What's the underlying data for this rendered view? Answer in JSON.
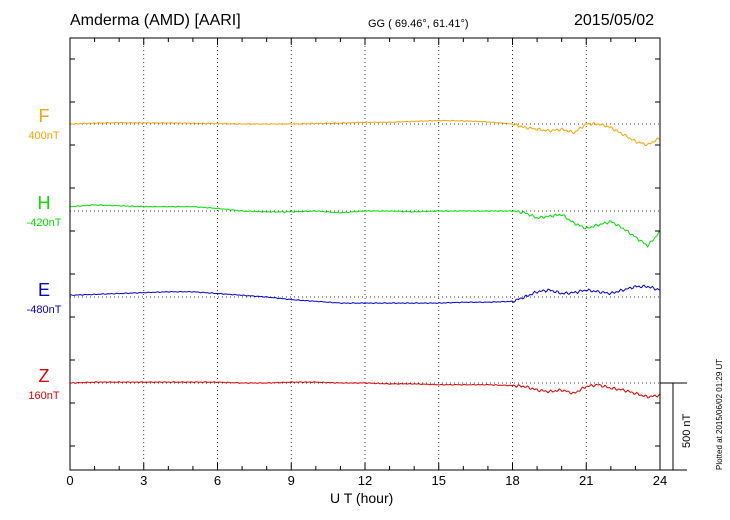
{
  "header": {
    "station": "Amderma (AMD)  [AARI]",
    "coords": "GG ( 69.46°,  61.41°)",
    "date": "2015/05/02"
  },
  "side": {
    "scale_label": "500 nT",
    "plotted": "Plotted at 2015/06/02 01:29 UT"
  },
  "chart_data": {
    "type": "line",
    "xlabel": "U T (hour)",
    "xlim": [
      0,
      24
    ],
    "xticks": [
      "0",
      "3",
      "6",
      "9",
      "12",
      "15",
      "18",
      "21",
      "24"
    ],
    "grid": true,
    "scale_bar_nT": 500,
    "series": [
      {
        "name": "F",
        "baseline": "400nT",
        "color": "#f5a500",
        "x": [
          0,
          1,
          2,
          3,
          4,
          5,
          6,
          7,
          8,
          9,
          10,
          11,
          12,
          13,
          14,
          15,
          16,
          17,
          18,
          18.5,
          19,
          19.5,
          20,
          20.5,
          21,
          21.5,
          22,
          22.5,
          23,
          23.5,
          24
        ],
        "y": [
          0,
          5,
          8,
          6,
          6,
          4,
          3,
          0,
          0,
          0,
          3,
          5,
          10,
          10,
          15,
          20,
          18,
          12,
          0,
          -20,
          -30,
          -40,
          -30,
          -50,
          0,
          0,
          -20,
          -60,
          -100,
          -120,
          -80
        ]
      },
      {
        "name": "H",
        "baseline": "-420nT",
        "color": "#00e000",
        "x": [
          0,
          1,
          2,
          3,
          4,
          5,
          6,
          7,
          8,
          9,
          10,
          11,
          12,
          13,
          14,
          15,
          16,
          17,
          18,
          18.5,
          19,
          19.5,
          20,
          20.5,
          21,
          21.5,
          22,
          22.5,
          23,
          23.5,
          24
        ],
        "y": [
          25,
          35,
          30,
          25,
          25,
          25,
          15,
          0,
          -5,
          -5,
          0,
          -10,
          0,
          0,
          -5,
          0,
          0,
          0,
          0,
          -10,
          -40,
          -30,
          -20,
          -70,
          -100,
          -80,
          -60,
          -100,
          -150,
          -200,
          -120
        ]
      },
      {
        "name": "E",
        "baseline": "-480nT",
        "color": "#0000d0",
        "x": [
          0,
          1,
          2,
          3,
          4,
          5,
          6,
          7,
          8,
          9,
          10,
          11,
          12,
          13,
          14,
          15,
          16,
          17,
          18,
          18.5,
          19,
          19.5,
          20,
          20.5,
          21,
          21.5,
          22,
          22.5,
          23,
          23.5,
          24
        ],
        "y": [
          10,
          15,
          20,
          25,
          30,
          30,
          20,
          10,
          0,
          -15,
          -25,
          -35,
          -35,
          -35,
          -35,
          -35,
          -30,
          -30,
          -25,
          0,
          30,
          40,
          20,
          25,
          40,
          30,
          20,
          40,
          60,
          60,
          40
        ]
      },
      {
        "name": "Z",
        "baseline": "160nT",
        "color": "#e00000",
        "x": [
          0,
          1,
          2,
          3,
          4,
          5,
          6,
          7,
          8,
          9,
          10,
          11,
          12,
          13,
          14,
          15,
          16,
          17,
          18,
          18.5,
          19,
          19.5,
          20,
          20.5,
          21,
          21.5,
          22,
          22.5,
          23,
          23.5,
          24
        ],
        "y": [
          0,
          5,
          5,
          5,
          5,
          5,
          5,
          0,
          0,
          5,
          5,
          0,
          0,
          -5,
          -5,
          -10,
          -10,
          -10,
          -15,
          -20,
          -40,
          -50,
          -40,
          -60,
          -20,
          -10,
          -30,
          -40,
          -60,
          -80,
          -70
        ]
      }
    ]
  }
}
